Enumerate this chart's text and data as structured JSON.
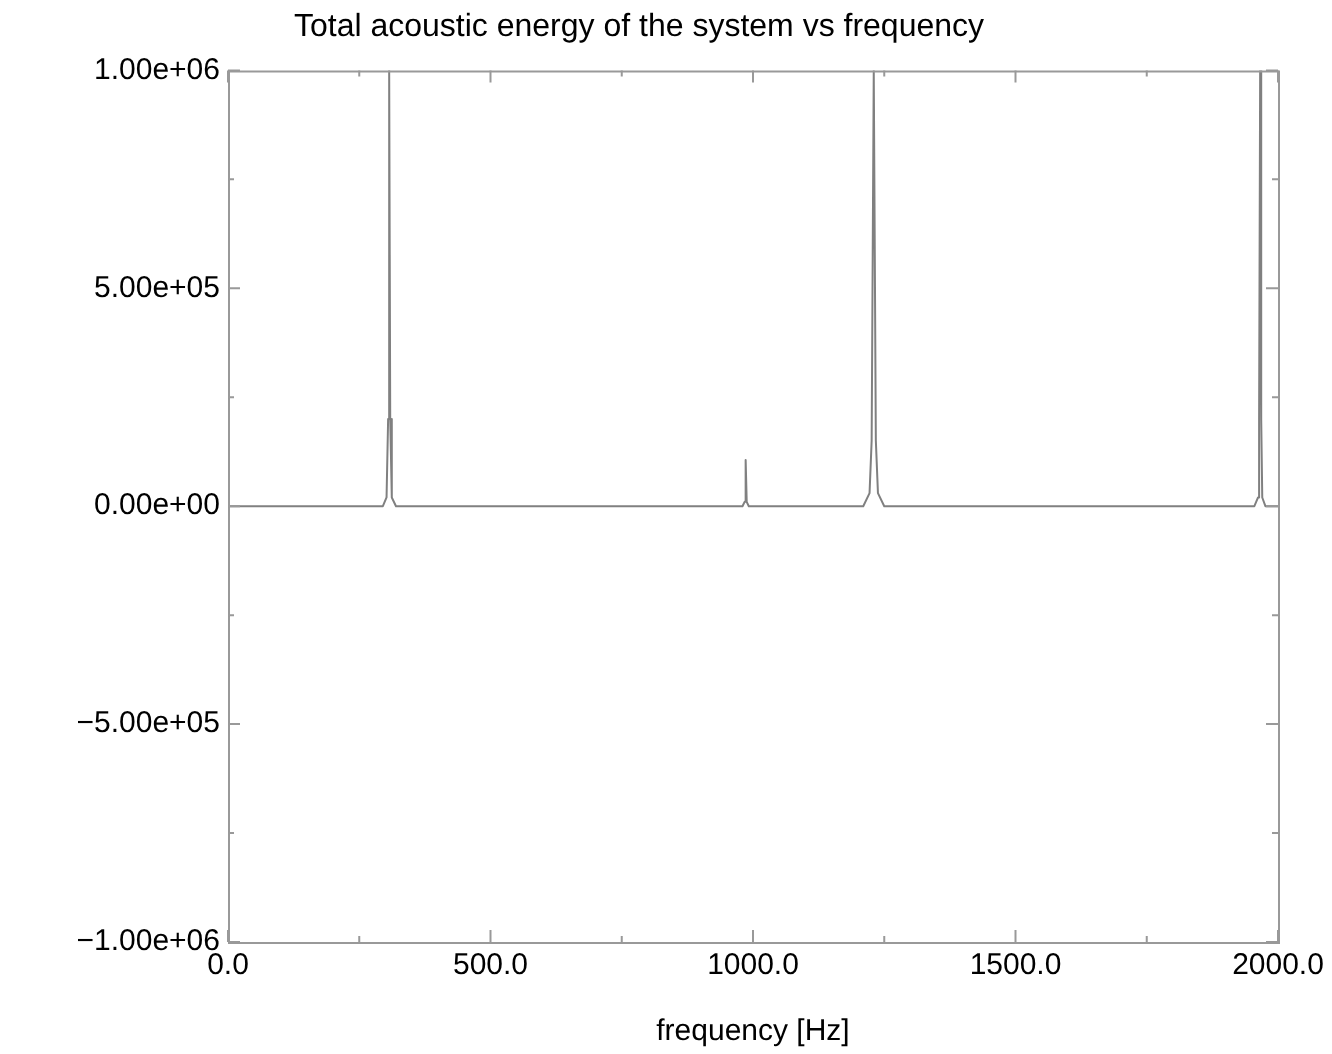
{
  "chart_data": {
    "type": "line",
    "title": "Total acoustic energy of the system vs frequency",
    "xlabel": "frequency [Hz]",
    "x": [
      0,
      295,
      302,
      305,
      307,
      309,
      312,
      320,
      980,
      984,
      986,
      988,
      992,
      1210,
      1222,
      1226,
      1230,
      1234,
      1238,
      1250,
      1955,
      1962,
      1964,
      1966,
      1968,
      1970,
      1976,
      2000
    ],
    "series": [
      {
        "color": "#808080",
        "values": [
          0,
          0,
          20000,
          200000,
          1000000,
          200000,
          20000,
          0,
          0,
          10000,
          106000,
          10000,
          0,
          0,
          30000,
          150000,
          1000000,
          150000,
          30000,
          0,
          0,
          20000,
          200000,
          1000000,
          200000,
          20000,
          0,
          0
        ]
      }
    ],
    "xlim": [
      0,
      2000
    ],
    "xticks": [
      {
        "value": 0,
        "label": "0.0"
      },
      {
        "value": 250,
        "label": null
      },
      {
        "value": 500,
        "label": "500.0"
      },
      {
        "value": 750,
        "label": null
      },
      {
        "value": 1000,
        "label": "1000.0"
      },
      {
        "value": 1250,
        "label": null
      },
      {
        "value": 1500,
        "label": "1500.0"
      },
      {
        "value": 1750,
        "label": null
      },
      {
        "value": 2000,
        "label": "2000.0"
      }
    ],
    "ylim": [
      -1000000,
      1000000
    ],
    "yticks": [
      {
        "value": -1000000,
        "label": "−1.00e+06"
      },
      {
        "value": -750000,
        "label": null
      },
      {
        "value": -500000,
        "label": "−5.00e+05"
      },
      {
        "value": -250000,
        "label": null
      },
      {
        "value": 0,
        "label": "0.00e+00"
      },
      {
        "value": 250000,
        "label": null
      },
      {
        "value": 500000,
        "label": "5.00e+05"
      },
      {
        "value": 750000,
        "label": null
      },
      {
        "value": 1000000,
        "label": "1.00e+06"
      }
    ],
    "grid": false,
    "legend": false,
    "marker": "none",
    "line_style": "solid"
  }
}
